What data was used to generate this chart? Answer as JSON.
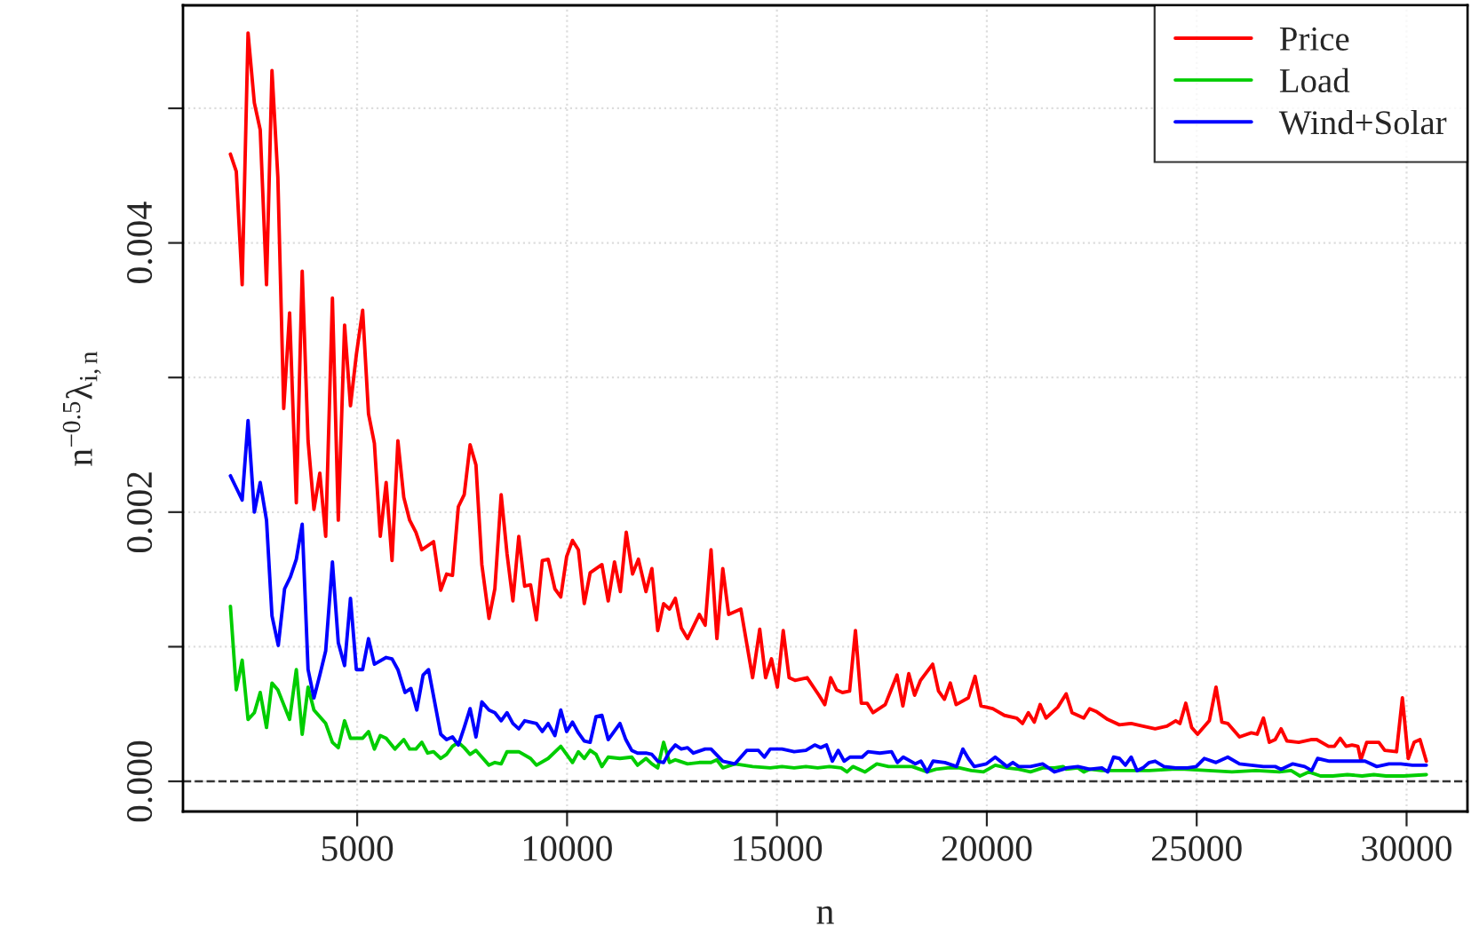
{
  "chart_data": {
    "type": "line",
    "xlabel": "n",
    "ylabel": "n$^{−0.5}$λ$_{i,n}$",
    "xlim": [
      850,
      31450
    ],
    "ylim": [
      -0.000224,
      0.005765
    ],
    "xticks": [
      5000,
      10000,
      15000,
      20000,
      25000,
      30000
    ],
    "yticks": [
      {
        "value": 0,
        "label": "0.000"
      },
      {
        "value": 0.001,
        "label": null
      },
      {
        "value": 0.002,
        "label": "0.002"
      },
      {
        "value": 0.003,
        "label": null
      },
      {
        "value": 0.004,
        "label": "0.004"
      },
      {
        "value": 0.005,
        "label": null
      }
    ],
    "grid": true,
    "legend": "top right",
    "marker": "none",
    "line_style": "solid",
    "ref_lines": [
      {
        "axis": "y",
        "value": 0,
        "color": "#333333",
        "line_style": "dashed"
      }
    ],
    "series": [
      {
        "name": "Price",
        "color": "#ff0000",
        "x": [
          1980,
          2120,
          2260,
          2400,
          2550,
          2690,
          2840,
          2970,
          3110,
          3250,
          3390,
          3550,
          3690,
          3830,
          3970,
          4110,
          4250,
          4410,
          4550,
          4700,
          4840,
          4980,
          5130,
          5270,
          5410,
          5550,
          5690,
          5830,
          5970,
          6110,
          6250,
          6400,
          6540,
          6820,
          6990,
          7130,
          7270,
          7410,
          7550,
          7690,
          7830,
          7970,
          8140,
          8280,
          8430,
          8570,
          8710,
          8850,
          8990,
          9130,
          9270,
          9410,
          9550,
          9710,
          9850,
          9990,
          10130,
          10270,
          10410,
          10550,
          10830,
          10980,
          11130,
          11270,
          11410,
          11560,
          11700,
          11880,
          12020,
          12160,
          12300,
          12440,
          12580,
          12720,
          12870,
          13150,
          13290,
          13430,
          13570,
          13710,
          13850,
          14140,
          14420,
          14590,
          14730,
          14870,
          15010,
          15150,
          15290,
          15430,
          15720,
          16000,
          16140,
          16280,
          16420,
          16560,
          16730,
          16870,
          17010,
          17150,
          17290,
          17580,
          17720,
          17860,
          18000,
          18140,
          18280,
          18420,
          18710,
          18850,
          18990,
          19130,
          19270,
          19560,
          19720,
          19860,
          20140,
          20420,
          20710,
          20850,
          20990,
          21130,
          21270,
          21410,
          21690,
          21890,
          22030,
          22310,
          22450,
          22600,
          22880,
          23160,
          23440,
          23720,
          24010,
          24290,
          24500,
          24600,
          24740,
          24880,
          25020,
          25300,
          25460,
          25600,
          25740,
          26020,
          26300,
          26440,
          26590,
          26730,
          26870,
          27010,
          27150,
          27430,
          27720,
          27860,
          28140,
          28280,
          28420,
          28560,
          28700,
          28840,
          28910,
          29050,
          29340,
          29480,
          29760,
          29900,
          30040,
          30180,
          30320,
          30470
        ],
        "values": [
          0.00466,
          0.00453,
          0.00369,
          0.00556,
          0.00504,
          0.00484,
          0.00369,
          0.00528,
          0.00449,
          0.00277,
          0.00348,
          0.00207,
          0.00379,
          0.00253,
          0.00202,
          0.00229,
          0.00182,
          0.00359,
          0.00194,
          0.00339,
          0.00279,
          0.00317,
          0.0035,
          0.00273,
          0.00251,
          0.00182,
          0.00222,
          0.00164,
          0.00253,
          0.00211,
          0.00194,
          0.00185,
          0.00172,
          0.00178,
          0.00142,
          0.00154,
          0.00153,
          0.00204,
          0.00213,
          0.0025,
          0.00235,
          0.00161,
          0.00121,
          0.00143,
          0.00213,
          0.00169,
          0.00134,
          0.00182,
          0.00145,
          0.00146,
          0.0012,
          0.00164,
          0.00165,
          0.00143,
          0.00137,
          0.00167,
          0.00179,
          0.00172,
          0.00132,
          0.00155,
          0.00161,
          0.00134,
          0.00163,
          0.00141,
          0.00185,
          0.00154,
          0.00165,
          0.00141,
          0.00158,
          0.00112,
          0.00132,
          0.00128,
          0.00136,
          0.00114,
          0.00106,
          0.00124,
          0.00116,
          0.00172,
          0.00106,
          0.00158,
          0.00124,
          0.00128,
          0.00077,
          0.00113,
          0.00077,
          0.00091,
          0.0007,
          0.00112,
          0.00077,
          0.00075,
          0.00077,
          0.00064,
          0.00057,
          0.00077,
          0.00068,
          0.00066,
          0.00067,
          0.00112,
          0.00058,
          0.00058,
          0.00051,
          0.00057,
          0.00068,
          0.00079,
          0.00056,
          0.0008,
          0.00064,
          0.00075,
          0.00087,
          0.00067,
          0.00061,
          0.00073,
          0.00057,
          0.00062,
          0.00078,
          0.00056,
          0.00054,
          0.00049,
          0.00047,
          0.00043,
          0.00051,
          0.00044,
          0.00057,
          0.00047,
          0.00055,
          0.00065,
          0.00051,
          0.00047,
          0.00054,
          0.00052,
          0.00046,
          0.00042,
          0.00043,
          0.00041,
          0.00039,
          0.00041,
          0.00045,
          0.00043,
          0.00058,
          0.0004,
          0.00035,
          0.00045,
          0.0007,
          0.00044,
          0.00043,
          0.00033,
          0.00036,
          0.00035,
          0.00047,
          0.00029,
          0.00031,
          0.00039,
          0.0003,
          0.00029,
          0.00031,
          0.00031,
          0.00026,
          0.00026,
          0.00032,
          0.00026,
          0.00027,
          0.00026,
          0.00016,
          0.00029,
          0.00029,
          0.00023,
          0.00022,
          0.00062,
          0.00017,
          0.00029,
          0.00031,
          0.00015
        ]
      },
      {
        "name": "Load",
        "color": "#00cd00",
        "x": [
          1980,
          2120,
          2260,
          2400,
          2550,
          2690,
          2840,
          2970,
          3110,
          3250,
          3390,
          3550,
          3690,
          3830,
          3970,
          4250,
          4410,
          4550,
          4700,
          4840,
          5130,
          5270,
          5410,
          5550,
          5690,
          5900,
          6110,
          6250,
          6400,
          6540,
          6680,
          6820,
          6990,
          7130,
          7270,
          7410,
          7550,
          7690,
          7830,
          7970,
          8140,
          8280,
          8430,
          8570,
          8850,
          9130,
          9270,
          9550,
          9850,
          10130,
          10270,
          10410,
          10550,
          10690,
          10830,
          10980,
          11260,
          11540,
          11680,
          11880,
          12020,
          12160,
          12300,
          12440,
          12580,
          12870,
          13150,
          13430,
          13570,
          13710,
          14000,
          14420,
          14840,
          15120,
          15410,
          15690,
          15970,
          16250,
          16530,
          16670,
          16810,
          17100,
          17380,
          17660,
          17940,
          18220,
          18580,
          18790,
          19070,
          19350,
          19630,
          19920,
          20200,
          20480,
          20760,
          21040,
          21330,
          21610,
          21820,
          21890,
          22170,
          22310,
          22450,
          22740,
          23020,
          23580,
          23870,
          24420,
          24710,
          25280,
          25840,
          26410,
          26970,
          27250,
          27460,
          27670,
          27950,
          28240,
          28590,
          28940,
          29220,
          29510,
          29930,
          30470
        ],
        "values": [
          0.0013,
          0.00068,
          0.0009,
          0.00046,
          0.00051,
          0.00066,
          0.0004,
          0.00073,
          0.00068,
          0.00057,
          0.00046,
          0.00083,
          0.00035,
          0.0007,
          0.00053,
          0.00043,
          0.00029,
          0.00025,
          0.00045,
          0.00032,
          0.00032,
          0.00037,
          0.00024,
          0.00034,
          0.00032,
          0.00024,
          0.00031,
          0.00024,
          0.00024,
          0.00029,
          0.00021,
          0.00022,
          0.00017,
          0.0002,
          0.00026,
          0.00029,
          0.00025,
          0.0002,
          0.00023,
          0.00018,
          0.00012,
          0.00014,
          0.00013,
          0.00022,
          0.00022,
          0.00017,
          0.00012,
          0.00017,
          0.00026,
          0.00014,
          0.00022,
          0.00017,
          0.00023,
          0.0002,
          0.00011,
          0.00018,
          0.00017,
          0.00018,
          0.00012,
          0.00017,
          0.00013,
          0.0001,
          0.00029,
          0.00014,
          0.00016,
          0.00013,
          0.00014,
          0.00014,
          0.00016,
          0.0001,
          0.00013,
          0.00011,
          0.0001,
          0.00011,
          0.0001,
          0.00011,
          0.0001,
          0.00011,
          0.0001,
          7e-05,
          0.00011,
          7e-05,
          0.00013,
          0.00011,
          0.00011,
          0.00011,
          7e-05,
          9e-05,
          0.0001,
          0.0001,
          8e-05,
          7e-05,
          0.00012,
          0.0001,
          9e-05,
          7e-05,
          0.0001,
          0.0001,
          0.00011,
          9e-05,
          0.0001,
          7e-05,
          9e-05,
          8e-05,
          8e-05,
          8e-05,
          8e-05,
          9e-05,
          9e-05,
          8e-05,
          7e-05,
          8e-05,
          7e-05,
          8e-05,
          4e-05,
          7e-05,
          4e-05,
          4e-05,
          5e-05,
          4e-05,
          5e-05,
          4e-05,
          4e-05,
          5e-05
        ]
      },
      {
        "name": "Wind+Solar",
        "color": "#0000ff",
        "x": [
          1980,
          2120,
          2260,
          2400,
          2550,
          2690,
          2840,
          2970,
          3120,
          3270,
          3410,
          3550,
          3690,
          3830,
          3970,
          4110,
          4250,
          4410,
          4550,
          4700,
          4840,
          4980,
          5130,
          5270,
          5410,
          5690,
          5830,
          5970,
          6140,
          6280,
          6420,
          6570,
          6700,
          6990,
          7130,
          7270,
          7410,
          7550,
          7690,
          7830,
          7970,
          8140,
          8280,
          8430,
          8570,
          8710,
          8850,
          8990,
          9270,
          9410,
          9550,
          9710,
          9850,
          9990,
          10130,
          10270,
          10410,
          10550,
          10690,
          10830,
          10980,
          11260,
          11400,
          11540,
          11680,
          11880,
          12020,
          12160,
          12300,
          12440,
          12580,
          12720,
          12870,
          13010,
          13290,
          13430,
          13710,
          14000,
          14280,
          14560,
          14700,
          14840,
          15120,
          15410,
          15690,
          15900,
          16040,
          16180,
          16320,
          16460,
          16600,
          16740,
          17030,
          17170,
          17450,
          17730,
          17870,
          18010,
          18300,
          18430,
          18580,
          18720,
          19000,
          19280,
          19430,
          19560,
          19700,
          19990,
          20200,
          20480,
          20620,
          20760,
          21040,
          21330,
          21610,
          21820,
          21890,
          22170,
          22450,
          22740,
          22880,
          23020,
          23160,
          23300,
          23440,
          23580,
          23720,
          23870,
          24010,
          24220,
          24500,
          24780,
          24990,
          25180,
          25460,
          25740,
          26020,
          26300,
          26590,
          26870,
          27010,
          27290,
          27570,
          27740,
          27880,
          28160,
          28450,
          28730,
          29010,
          29290,
          29580,
          29860,
          30140,
          30470
        ],
        "values": [
          0.00227,
          0.00218,
          0.00209,
          0.00268,
          0.002,
          0.00222,
          0.00194,
          0.00123,
          0.00101,
          0.00143,
          0.00152,
          0.00165,
          0.00191,
          0.00083,
          0.00062,
          0.00079,
          0.00097,
          0.00163,
          0.00103,
          0.00086,
          0.00136,
          0.00083,
          0.00083,
          0.00106,
          0.00087,
          0.00092,
          0.00091,
          0.00083,
          0.00066,
          0.00069,
          0.00053,
          0.00079,
          0.00083,
          0.00035,
          0.00031,
          0.00033,
          0.00027,
          0.0004,
          0.00054,
          0.00033,
          0.00059,
          0.00053,
          0.00051,
          0.00045,
          0.00051,
          0.00043,
          0.00039,
          0.00045,
          0.00043,
          0.00037,
          0.00043,
          0.00034,
          0.00053,
          0.00037,
          0.00044,
          0.00036,
          0.0003,
          0.00029,
          0.00048,
          0.00049,
          0.00031,
          0.00043,
          0.00031,
          0.00023,
          0.00021,
          0.00021,
          0.0002,
          0.00015,
          0.00014,
          0.00022,
          0.00027,
          0.00024,
          0.00025,
          0.00021,
          0.00024,
          0.00024,
          0.00015,
          0.00013,
          0.00023,
          0.00023,
          0.00018,
          0.00024,
          0.00024,
          0.00022,
          0.00023,
          0.00027,
          0.00025,
          0.00027,
          0.00015,
          0.00023,
          0.00015,
          0.00018,
          0.00018,
          0.00022,
          0.00021,
          0.00022,
          0.00014,
          0.00018,
          0.00013,
          0.00015,
          7e-05,
          0.00015,
          0.00014,
          0.00011,
          0.00024,
          0.00017,
          0.00011,
          0.00013,
          0.00018,
          0.00011,
          0.00014,
          0.00011,
          0.00011,
          0.00013,
          7e-05,
          9e-05,
          0.0001,
          0.00011,
          9e-05,
          0.0001,
          7e-05,
          0.00018,
          0.00017,
          0.00012,
          0.00018,
          8e-05,
          0.0001,
          0.00014,
          0.00015,
          0.00011,
          0.0001,
          0.0001,
          0.00011,
          0.00017,
          0.00014,
          0.00018,
          0.00013,
          0.00012,
          0.00011,
          0.00011,
          9e-05,
          0.00013,
          0.00011,
          8e-05,
          0.00017,
          0.00015,
          0.00015,
          0.00015,
          0.00015,
          0.00011,
          0.00013,
          0.00013,
          0.00012,
          0.00012
        ]
      }
    ]
  }
}
